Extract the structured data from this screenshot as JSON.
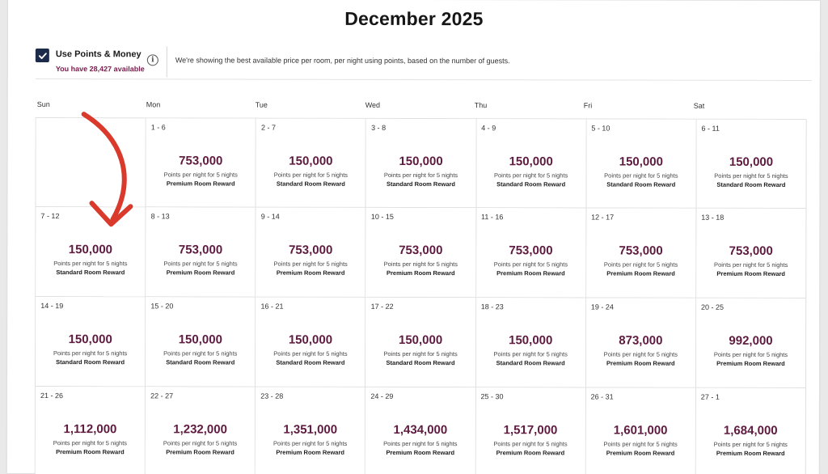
{
  "header": {
    "month_title": "December 2025"
  },
  "toggle": {
    "label": "Use Points & Money",
    "checked": true,
    "points_available": "You have 28,427 available",
    "info_icon_glyph": "i"
  },
  "info_text": "We're showing the best available price per room, per night using points, based on the number of guests.",
  "weekdays": [
    "Sun",
    "Mon",
    "Tue",
    "Wed",
    "Thu",
    "Fri",
    "Sat"
  ],
  "colors": {
    "price": "#5e1a3f",
    "points_available": "#7a1e4e",
    "checkbox": "#1c2b4a",
    "annotation_arrow": "#d93a2b"
  },
  "cells": [
    {
      "empty": true
    },
    {
      "range": "1 - 6",
      "price": "753,000",
      "sub": "Points per night for 5 nights",
      "room": "Premium Room Reward"
    },
    {
      "range": "2 - 7",
      "price": "150,000",
      "sub": "Points per night for 5 nights",
      "room": "Standard Room Reward"
    },
    {
      "range": "3 - 8",
      "price": "150,000",
      "sub": "Points per night for 5 nights",
      "room": "Standard Room Reward"
    },
    {
      "range": "4 - 9",
      "price": "150,000",
      "sub": "Points per night for 5 nights",
      "room": "Standard Room Reward"
    },
    {
      "range": "5 - 10",
      "price": "150,000",
      "sub": "Points per night for 5 nights",
      "room": "Standard Room Reward"
    },
    {
      "range": "6 - 11",
      "price": "150,000",
      "sub": "Points per night for 5 nights",
      "room": "Standard Room Reward"
    },
    {
      "range": "7 - 12",
      "price": "150,000",
      "sub": "Points per night for 5 nights",
      "room": "Standard Room Reward"
    },
    {
      "range": "8 - 13",
      "price": "753,000",
      "sub": "Points per night for 5 nights",
      "room": "Premium Room Reward"
    },
    {
      "range": "9 - 14",
      "price": "753,000",
      "sub": "Points per night for 5 nights",
      "room": "Premium Room Reward"
    },
    {
      "range": "10 - 15",
      "price": "753,000",
      "sub": "Points per night for 5 nights",
      "room": "Premium Room Reward"
    },
    {
      "range": "11 - 16",
      "price": "753,000",
      "sub": "Points per night for 5 nights",
      "room": "Premium Room Reward"
    },
    {
      "range": "12 - 17",
      "price": "753,000",
      "sub": "Points per night for 5 nights",
      "room": "Premium Room Reward"
    },
    {
      "range": "13 - 18",
      "price": "753,000",
      "sub": "Points per night for 5 nights",
      "room": "Premium Room Reward"
    },
    {
      "range": "14 - 19",
      "price": "150,000",
      "sub": "Points per night for 5 nights",
      "room": "Standard Room Reward"
    },
    {
      "range": "15 - 20",
      "price": "150,000",
      "sub": "Points per night for 5 nights",
      "room": "Standard Room Reward"
    },
    {
      "range": "16 - 21",
      "price": "150,000",
      "sub": "Points per night for 5 nights",
      "room": "Standard Room Reward"
    },
    {
      "range": "17 - 22",
      "price": "150,000",
      "sub": "Points per night for 5 nights",
      "room": "Standard Room Reward"
    },
    {
      "range": "18 - 23",
      "price": "150,000",
      "sub": "Points per night for 5 nights",
      "room": "Standard Room Reward"
    },
    {
      "range": "19 - 24",
      "price": "873,000",
      "sub": "Points per night for 5 nights",
      "room": "Premium Room Reward"
    },
    {
      "range": "20 - 25",
      "price": "992,000",
      "sub": "Points per night for 5 nights",
      "room": "Premium Room Reward"
    },
    {
      "range": "21 - 26",
      "price": "1,112,000",
      "sub": "Points per night for 5 nights",
      "room": "Premium Room Reward"
    },
    {
      "range": "22 - 27",
      "price": "1,232,000",
      "sub": "Points per night for 5 nights",
      "room": "Premium Room Reward"
    },
    {
      "range": "23 - 28",
      "price": "1,351,000",
      "sub": "Points per night for 5 nights",
      "room": "Premium Room Reward"
    },
    {
      "range": "24 - 29",
      "price": "1,434,000",
      "sub": "Points per night for 5 nights",
      "room": "Premium Room Reward"
    },
    {
      "range": "25 - 30",
      "price": "1,517,000",
      "sub": "Points per night for 5 nights",
      "room": "Premium Room Reward"
    },
    {
      "range": "26 - 31",
      "price": "1,601,000",
      "sub": "Points per night for 5 nights",
      "room": "Premium Room Reward"
    },
    {
      "range": "27 - 1",
      "price": "1,684,000",
      "sub": "Points per night for 5 nights",
      "room": "Premium Room Reward"
    }
  ]
}
